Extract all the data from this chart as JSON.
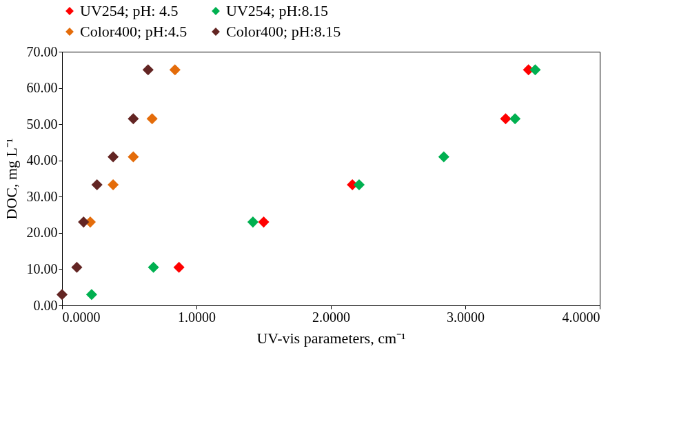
{
  "chart_data": {
    "type": "scatter",
    "xlabel": "UV-vis parameters, cm⁻¹",
    "ylabel": "DOC, mg L⁻¹",
    "series": [
      {
        "name": "UV254; pH: 4.5",
        "color": "#ff0000",
        "x": [
          0.87,
          1.5,
          2.16,
          3.3,
          3.47
        ],
        "values": [
          10.5,
          23,
          33.3,
          51.5,
          65
        ]
      },
      {
        "name": "UV254; pH:8.15",
        "color": "#00b050",
        "x": [
          0.22,
          0.68,
          1.42,
          2.21,
          2.84,
          3.37,
          3.52
        ],
        "values": [
          3,
          10.5,
          23,
          33.3,
          41,
          51.5,
          65
        ]
      },
      {
        "name": "Color400; pH:4.5",
        "color": "#e46c0a",
        "x": [
          0.21,
          0.38,
          0.53,
          0.67,
          0.84
        ],
        "values": [
          23,
          33.3,
          41,
          51.5,
          65
        ]
      },
      {
        "name": "Color400; pH:8.15",
        "color": "#632523",
        "x": [
          0,
          0.11,
          0.16,
          0.26,
          0.38,
          0.53,
          0.64
        ],
        "values": [
          3,
          10.5,
          23,
          33.3,
          41,
          51.5,
          65
        ]
      }
    ],
    "xlim": [
      0,
      4
    ],
    "xticks": [
      {
        "value": 0,
        "label": "0.0000"
      },
      {
        "value": 1,
        "label": "1.0000"
      },
      {
        "value": 2,
        "label": "2.0000"
      },
      {
        "value": 3,
        "label": "3.0000"
      },
      {
        "value": 4,
        "label": "4.0000"
      }
    ],
    "ylim": [
      0,
      70
    ],
    "yticks": [
      {
        "value": 0,
        "label": "0.00"
      },
      {
        "value": 10,
        "label": "10.00"
      },
      {
        "value": 20,
        "label": "20.00"
      },
      {
        "value": 30,
        "label": "30.00"
      },
      {
        "value": 40,
        "label": "40.00"
      },
      {
        "value": 50,
        "label": "50.00"
      },
      {
        "value": 60,
        "label": "60.00"
      },
      {
        "value": 70,
        "label": "70.00"
      }
    ],
    "marker": "diamond",
    "grid": false,
    "legend": "top"
  }
}
